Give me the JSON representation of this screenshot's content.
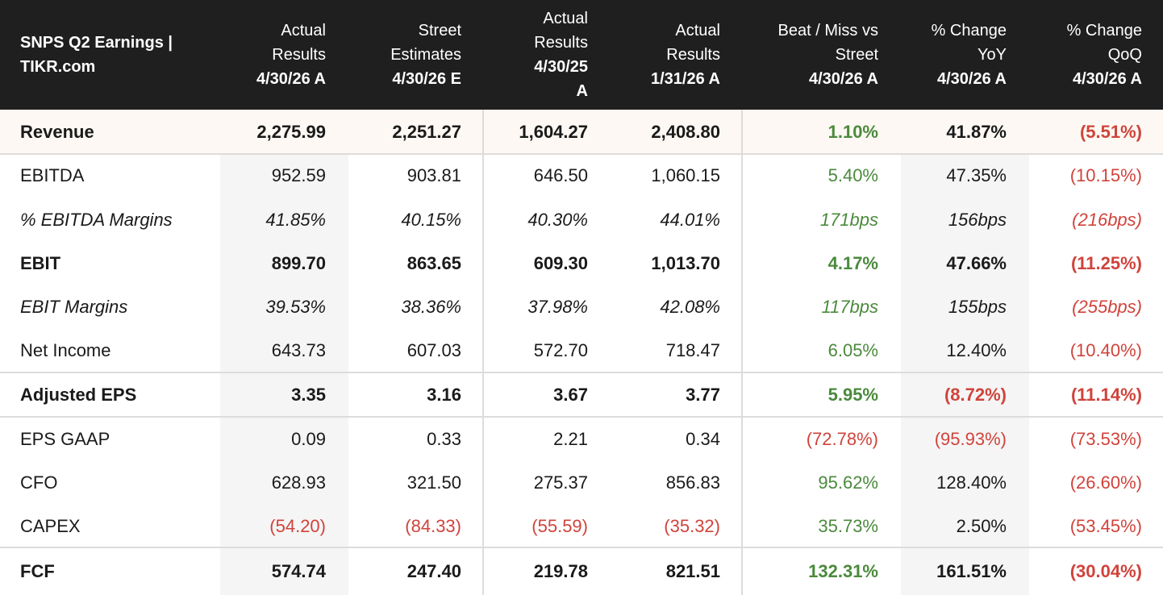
{
  "header": {
    "title_line1": "SNPS Q2 Earnings |",
    "title_line2": "TIKR.com",
    "columns": [
      {
        "line1": "Actual",
        "line2": "Results",
        "line3": "4/30/26 A"
      },
      {
        "line1": "Street",
        "line2": "Estimates",
        "line3": "4/30/26 E"
      },
      {
        "line1": "Actual",
        "line2": "Results",
        "line3": "4/30/25",
        "line4": "A"
      },
      {
        "line1": "Actual",
        "line2": "Results",
        "line3": "1/31/26 A"
      },
      {
        "line1": "Beat / Miss vs",
        "line2": "Street",
        "line3": "4/30/26 A"
      },
      {
        "line1": "% Change",
        "line2": "YoY",
        "line3": "4/30/26 A"
      },
      {
        "line1": "% Change",
        "line2": "QoQ",
        "line3": "4/30/26 A"
      }
    ]
  },
  "colors": {
    "header_bg": "#1f1f1f",
    "positive": "#4a8a3c",
    "negative": "#d0433b",
    "highlight_row": "#fdf8f3",
    "band": "#f5f5f5"
  },
  "rows": [
    {
      "label": "Revenue",
      "values": [
        "2,275.99",
        "2,251.27",
        "1,604.27",
        "2,408.80",
        "1.10%",
        "41.87%",
        "(5.51%)"
      ],
      "tones": [
        "",
        "",
        "",
        "",
        "pos",
        "",
        "neg"
      ]
    },
    {
      "label": "EBITDA",
      "values": [
        "952.59",
        "903.81",
        "646.50",
        "1,060.15",
        "5.40%",
        "47.35%",
        "(10.15%)"
      ],
      "tones": [
        "",
        "",
        "",
        "",
        "pos",
        "",
        "neg"
      ]
    },
    {
      "label": "% EBITDA Margins",
      "values": [
        "41.85%",
        "40.15%",
        "40.30%",
        "44.01%",
        "171bps",
        "156bps",
        "(216bps)"
      ],
      "tones": [
        "",
        "",
        "",
        "",
        "pos",
        "",
        "neg"
      ]
    },
    {
      "label": "EBIT",
      "values": [
        "899.70",
        "863.65",
        "609.30",
        "1,013.70",
        "4.17%",
        "47.66%",
        "(11.25%)"
      ],
      "tones": [
        "",
        "",
        "",
        "",
        "pos",
        "",
        "neg"
      ]
    },
    {
      "label": "EBIT Margins",
      "values": [
        "39.53%",
        "38.36%",
        "37.98%",
        "42.08%",
        "117bps",
        "155bps",
        "(255bps)"
      ],
      "tones": [
        "",
        "",
        "",
        "",
        "pos",
        "",
        "neg"
      ]
    },
    {
      "label": "Net Income",
      "values": [
        "643.73",
        "607.03",
        "572.70",
        "718.47",
        "6.05%",
        "12.40%",
        "(10.40%)"
      ],
      "tones": [
        "",
        "",
        "",
        "",
        "pos",
        "",
        "neg"
      ]
    },
    {
      "label": "Adjusted EPS",
      "values": [
        "3.35",
        "3.16",
        "3.67",
        "3.77",
        "5.95%",
        "(8.72%)",
        "(11.14%)"
      ],
      "tones": [
        "",
        "",
        "",
        "",
        "pos",
        "neg",
        "neg"
      ]
    },
    {
      "label": "EPS GAAP",
      "values": [
        "0.09",
        "0.33",
        "2.21",
        "0.34",
        "(72.78%)",
        "(95.93%)",
        "(73.53%)"
      ],
      "tones": [
        "",
        "",
        "",
        "",
        "neg",
        "neg",
        "neg"
      ]
    },
    {
      "label": "CFO",
      "values": [
        "628.93",
        "321.50",
        "275.37",
        "856.83",
        "95.62%",
        "128.40%",
        "(26.60%)"
      ],
      "tones": [
        "",
        "",
        "",
        "",
        "pos",
        "",
        "neg"
      ]
    },
    {
      "label": "CAPEX",
      "values": [
        "(54.20)",
        "(84.33)",
        "(55.59)",
        "(35.32)",
        "35.73%",
        "2.50%",
        "(53.45%)"
      ],
      "tones": [
        "neg",
        "neg",
        "neg",
        "neg",
        "pos",
        "",
        "neg"
      ]
    },
    {
      "label": "FCF",
      "values": [
        "574.74",
        "247.40",
        "219.78",
        "821.51",
        "132.31%",
        "161.51%",
        "(30.04%)"
      ],
      "tones": [
        "",
        "",
        "",
        "",
        "pos",
        "",
        "neg"
      ]
    }
  ]
}
